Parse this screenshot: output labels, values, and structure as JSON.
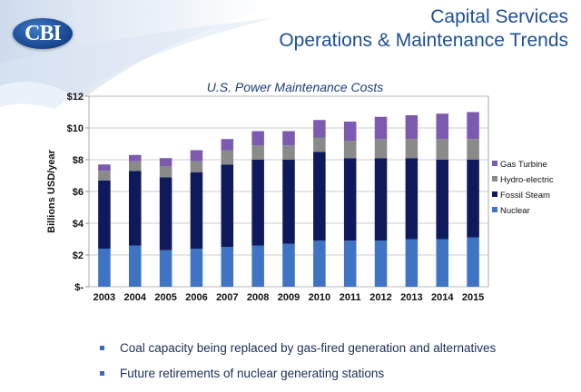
{
  "header": {
    "logo_text": "CBI",
    "title_line1": "Capital Services",
    "title_line2": "Operations & Maintenance Trends"
  },
  "bullets": [
    "Coal capacity being replaced by gas-fired generation and alternatives",
    "Future retirements of nuclear generating stations"
  ],
  "colors": {
    "nuclear": "#3f73c4",
    "fossil_steam": "#0f1a5c",
    "hydro": "#8a8a8a",
    "gas_turbine": "#7b5ab0",
    "title": "#1d4f94"
  },
  "chart_data": {
    "type": "bar",
    "stacked": true,
    "title": "U.S. Power Maintenance Costs",
    "ylabel": "Billions USD/year",
    "xlabel": "",
    "ylim": [
      0,
      12
    ],
    "yticks": [
      0,
      2,
      4,
      6,
      8,
      10,
      12
    ],
    "ytick_labels": [
      "$-",
      "$2",
      "$4",
      "$6",
      "$8",
      "$10",
      "$12"
    ],
    "grid": true,
    "legend_position": "right",
    "categories": [
      "2003",
      "2004",
      "2005",
      "2006",
      "2007",
      "2008",
      "2009",
      "2010",
      "2011",
      "2012",
      "2013",
      "2014",
      "2015"
    ],
    "series": [
      {
        "name": "Nuclear",
        "color": "#3f73c4",
        "values": [
          2.4,
          2.6,
          2.3,
          2.4,
          2.5,
          2.6,
          2.7,
          2.9,
          2.9,
          2.9,
          3.0,
          3.0,
          3.1
        ]
      },
      {
        "name": "Fossil Steam",
        "color": "#0f1a5c",
        "values": [
          4.3,
          4.7,
          4.6,
          4.8,
          5.2,
          5.4,
          5.3,
          5.6,
          5.2,
          5.2,
          5.1,
          5.0,
          4.9
        ]
      },
      {
        "name": "Hydro-electric",
        "color": "#8a8a8a",
        "values": [
          0.6,
          0.6,
          0.7,
          0.7,
          0.9,
          0.9,
          0.9,
          0.9,
          1.1,
          1.2,
          1.2,
          1.3,
          1.3
        ]
      },
      {
        "name": "Gas Turbine",
        "color": "#7b5ab0",
        "values": [
          0.4,
          0.4,
          0.5,
          0.7,
          0.7,
          0.9,
          0.9,
          1.1,
          1.2,
          1.4,
          1.5,
          1.6,
          1.7
        ]
      }
    ]
  }
}
